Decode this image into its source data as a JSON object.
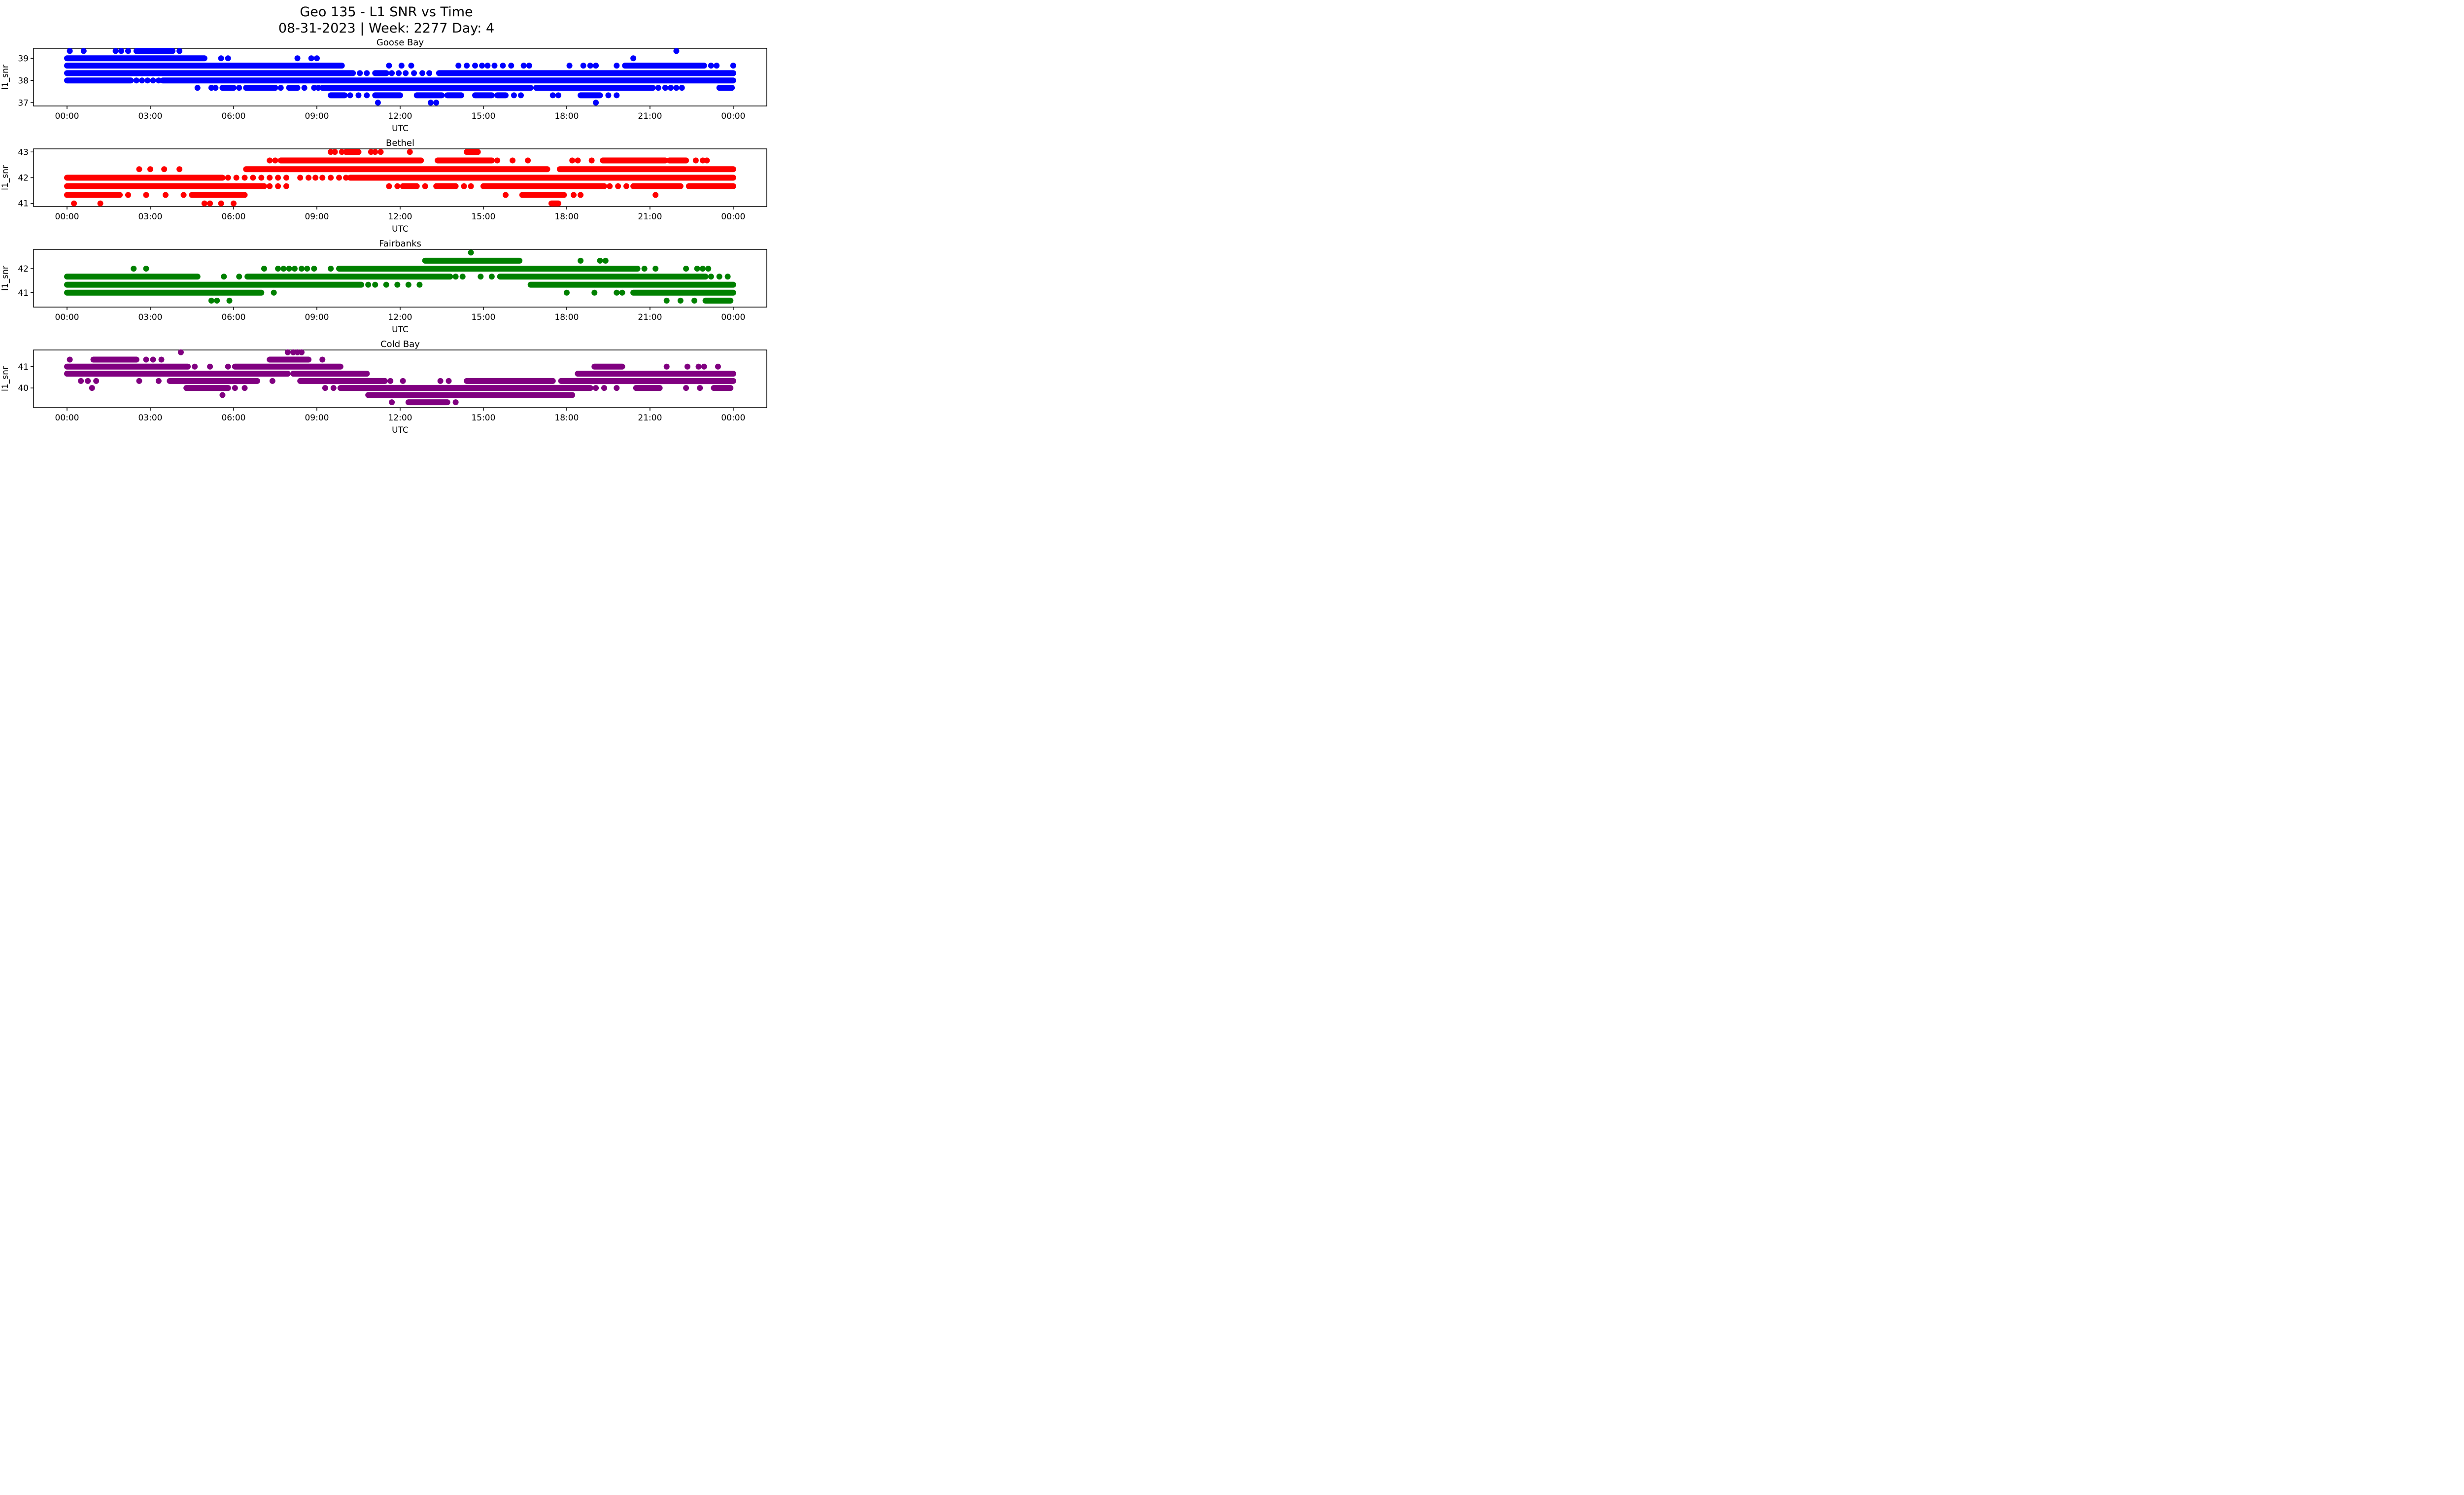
{
  "figure": {
    "title_line1": "Geo 135 - L1 SNR vs Time",
    "title_line2": "08-31-2023 | Week: 2277 Day: 4",
    "xlabel": "UTC",
    "ylabel": "l1_snr",
    "background": "#ffffff",
    "text_color": "#000000",
    "x_ticks": {
      "hours": [
        0,
        3,
        6,
        9,
        12,
        15,
        18,
        21,
        24
      ],
      "labels": [
        "00:00",
        "03:00",
        "06:00",
        "09:00",
        "12:00",
        "15:00",
        "18:00",
        "21:00",
        "00:00"
      ]
    }
  },
  "chart_data": [
    {
      "type": "scatter",
      "title": "Goose Bay",
      "color": "#0000ff",
      "xlabel": "UTC",
      "ylabel": "l1_snr",
      "x_hours_range": [
        0,
        24
      ],
      "ylim": [
        36.85,
        39.45
      ],
      "y_ticks": [
        37,
        38,
        39
      ],
      "y_tick_labels": [
        "37",
        "38",
        "39"
      ],
      "snr_levels": [
        37.0,
        37.33,
        37.67,
        38.0,
        38.33,
        38.67,
        39.0,
        39.33
      ],
      "runs": [
        [
          39.33,
          2.5,
          3.8
        ],
        [
          39.0,
          0.0,
          4.95
        ],
        [
          38.67,
          0.0,
          9.9
        ],
        [
          38.67,
          20.1,
          22.95
        ],
        [
          38.33,
          0.0,
          10.3
        ],
        [
          38.33,
          11.1,
          11.5
        ],
        [
          38.33,
          13.4,
          24.0
        ],
        [
          38.0,
          0.0,
          2.3
        ],
        [
          38.0,
          3.45,
          24.0
        ],
        [
          37.67,
          5.6,
          6.0
        ],
        [
          37.67,
          6.45,
          7.5
        ],
        [
          37.67,
          8.0,
          8.3
        ],
        [
          37.67,
          9.2,
          16.7
        ],
        [
          37.67,
          16.9,
          21.1
        ],
        [
          37.67,
          23.5,
          23.95
        ],
        [
          37.33,
          9.5,
          10.0
        ],
        [
          37.33,
          11.1,
          12.0
        ],
        [
          37.33,
          12.6,
          13.5
        ],
        [
          37.33,
          13.7,
          14.2
        ],
        [
          37.33,
          14.7,
          15.3
        ],
        [
          37.33,
          15.5,
          15.8
        ],
        [
          37.33,
          18.5,
          19.2
        ]
      ],
      "points": [
        [
          39.33,
          0.1
        ],
        [
          39.33,
          0.6
        ],
        [
          39.33,
          1.75
        ],
        [
          39.33,
          1.95
        ],
        [
          39.33,
          2.2
        ],
        [
          39.33,
          4.05
        ],
        [
          39.33,
          21.95
        ],
        [
          39.0,
          5.55
        ],
        [
          39.0,
          5.8
        ],
        [
          39.0,
          8.3
        ],
        [
          39.0,
          8.8
        ],
        [
          39.0,
          9.0
        ],
        [
          39.0,
          20.4
        ],
        [
          38.67,
          11.6
        ],
        [
          38.67,
          12.05
        ],
        [
          38.67,
          12.4
        ],
        [
          38.67,
          14.1
        ],
        [
          38.67,
          14.4
        ],
        [
          38.67,
          14.7
        ],
        [
          38.67,
          14.95
        ],
        [
          38.67,
          15.15
        ],
        [
          38.67,
          15.4
        ],
        [
          38.67,
          15.7
        ],
        [
          38.67,
          16.0
        ],
        [
          38.67,
          16.45
        ],
        [
          38.67,
          16.65
        ],
        [
          38.67,
          18.1
        ],
        [
          38.67,
          18.6
        ],
        [
          38.67,
          18.85
        ],
        [
          38.67,
          19.05
        ],
        [
          38.67,
          19.8
        ],
        [
          38.67,
          23.2
        ],
        [
          38.67,
          23.4
        ],
        [
          38.67,
          24.0
        ],
        [
          38.33,
          10.55
        ],
        [
          38.33,
          10.8
        ],
        [
          38.33,
          11.7
        ],
        [
          38.33,
          11.95
        ],
        [
          38.33,
          12.2
        ],
        [
          38.33,
          12.5
        ],
        [
          38.33,
          12.8
        ],
        [
          38.33,
          13.05
        ],
        [
          38.0,
          2.5
        ],
        [
          38.0,
          2.7
        ],
        [
          38.0,
          2.9
        ],
        [
          38.0,
          3.1
        ],
        [
          38.0,
          3.3
        ],
        [
          37.67,
          4.7
        ],
        [
          37.67,
          5.2
        ],
        [
          37.67,
          5.35
        ],
        [
          37.67,
          6.2
        ],
        [
          37.67,
          7.7
        ],
        [
          37.67,
          8.55
        ],
        [
          37.67,
          8.9
        ],
        [
          37.67,
          9.05
        ],
        [
          37.67,
          21.3
        ],
        [
          37.67,
          21.55
        ],
        [
          37.67,
          21.75
        ],
        [
          37.67,
          21.95
        ],
        [
          37.67,
          22.15
        ],
        [
          37.33,
          10.2
        ],
        [
          37.33,
          10.5
        ],
        [
          37.33,
          10.8
        ],
        [
          37.33,
          16.1
        ],
        [
          37.33,
          16.35
        ],
        [
          37.33,
          17.5
        ],
        [
          37.33,
          17.7
        ],
        [
          37.33,
          19.5
        ],
        [
          37.33,
          19.8
        ],
        [
          37.0,
          11.2
        ],
        [
          37.0,
          13.1
        ],
        [
          37.0,
          13.3
        ],
        [
          37.0,
          19.05
        ]
      ]
    },
    {
      "type": "scatter",
      "title": "Bethel",
      "color": "#ff0000",
      "xlabel": "UTC",
      "ylabel": "l1_snr",
      "x_hours_range": [
        0,
        24
      ],
      "ylim": [
        40.88,
        43.12
      ],
      "y_ticks": [
        41,
        42,
        43
      ],
      "y_tick_labels": [
        "41",
        "42",
        "43"
      ],
      "snr_levels": [
        41.0,
        41.33,
        41.67,
        42.0,
        42.33,
        42.67,
        43.0
      ],
      "runs": [
        [
          43.0,
          10.05,
          10.5
        ],
        [
          43.0,
          14.4,
          14.8
        ],
        [
          42.67,
          7.7,
          12.75
        ],
        [
          42.67,
          13.35,
          15.3
        ],
        [
          42.67,
          19.3,
          21.55
        ],
        [
          42.67,
          21.7,
          22.3
        ],
        [
          42.33,
          6.45,
          17.3
        ],
        [
          42.33,
          17.75,
          24.0
        ],
        [
          42.0,
          0.0,
          5.6
        ],
        [
          42.0,
          10.2,
          24.0
        ],
        [
          41.67,
          0.0,
          7.1
        ],
        [
          41.67,
          12.1,
          12.6
        ],
        [
          41.67,
          13.3,
          14.0
        ],
        [
          41.67,
          15.0,
          19.35
        ],
        [
          41.67,
          20.4,
          22.1
        ],
        [
          41.67,
          22.4,
          24.0
        ],
        [
          41.33,
          0.0,
          1.9
        ],
        [
          41.33,
          4.5,
          6.4
        ],
        [
          41.33,
          16.4,
          17.9
        ],
        [
          41.0,
          17.45,
          17.7
        ]
      ],
      "points": [
        [
          43.0,
          9.5
        ],
        [
          43.0,
          9.65
        ],
        [
          43.0,
          9.9
        ],
        [
          43.0,
          10.95
        ],
        [
          43.0,
          11.1
        ],
        [
          43.0,
          11.3
        ],
        [
          43.0,
          12.35
        ],
        [
          42.67,
          7.3
        ],
        [
          42.67,
          7.5
        ],
        [
          42.67,
          15.5
        ],
        [
          42.67,
          16.05
        ],
        [
          42.67,
          16.6
        ],
        [
          42.67,
          18.2
        ],
        [
          42.67,
          18.4
        ],
        [
          42.67,
          18.9
        ],
        [
          42.67,
          22.65
        ],
        [
          42.67,
          22.9
        ],
        [
          42.67,
          23.05
        ],
        [
          42.33,
          2.6
        ],
        [
          42.33,
          3.0
        ],
        [
          42.33,
          3.5
        ],
        [
          42.33,
          4.05
        ],
        [
          42.0,
          5.8
        ],
        [
          42.0,
          6.1
        ],
        [
          42.0,
          6.4
        ],
        [
          42.0,
          6.7
        ],
        [
          42.0,
          7.0
        ],
        [
          42.0,
          7.3
        ],
        [
          42.0,
          7.6
        ],
        [
          42.0,
          7.9
        ],
        [
          42.0,
          8.4
        ],
        [
          42.0,
          8.7
        ],
        [
          42.0,
          8.95
        ],
        [
          42.0,
          9.2
        ],
        [
          42.0,
          9.5
        ],
        [
          42.0,
          9.8
        ],
        [
          42.0,
          10.05
        ],
        [
          41.67,
          7.3
        ],
        [
          41.67,
          7.6
        ],
        [
          41.67,
          7.9
        ],
        [
          41.67,
          11.6
        ],
        [
          41.67,
          11.9
        ],
        [
          41.67,
          12.9
        ],
        [
          41.67,
          14.3
        ],
        [
          41.67,
          14.55
        ],
        [
          41.67,
          19.55
        ],
        [
          41.67,
          19.85
        ],
        [
          41.67,
          20.15
        ],
        [
          41.33,
          2.2
        ],
        [
          41.33,
          2.85
        ],
        [
          41.33,
          3.55
        ],
        [
          41.33,
          4.2
        ],
        [
          41.33,
          15.8
        ],
        [
          41.33,
          18.25
        ],
        [
          41.33,
          18.5
        ],
        [
          41.33,
          21.2
        ],
        [
          41.0,
          0.25
        ],
        [
          41.0,
          1.2
        ],
        [
          41.0,
          4.95
        ],
        [
          41.0,
          5.15
        ],
        [
          41.0,
          5.55
        ],
        [
          41.0,
          6.0
        ]
      ]
    },
    {
      "type": "scatter",
      "title": "Fairbanks",
      "color": "#008000",
      "xlabel": "UTC",
      "ylabel": "l1_snr",
      "x_hours_range": [
        0,
        24
      ],
      "ylim": [
        40.4,
        42.8
      ],
      "y_ticks": [
        41,
        42
      ],
      "y_tick_labels": [
        "41",
        "42"
      ],
      "snr_levels": [
        40.67,
        41.0,
        41.33,
        41.67,
        42.0,
        42.33,
        42.67
      ],
      "runs": [
        [
          42.33,
          12.9,
          16.3
        ],
        [
          42.0,
          9.8,
          20.55
        ],
        [
          41.67,
          0.0,
          4.7
        ],
        [
          41.67,
          6.5,
          13.8
        ],
        [
          41.67,
          15.6,
          23.0
        ],
        [
          41.33,
          0.0,
          10.6
        ],
        [
          41.33,
          16.7,
          24.0
        ],
        [
          41.0,
          0.0,
          7.0
        ],
        [
          41.0,
          20.4,
          24.0
        ],
        [
          40.67,
          23.0,
          23.9
        ]
      ],
      "points": [
        [
          42.67,
          14.55
        ],
        [
          42.33,
          18.5
        ],
        [
          42.33,
          19.2
        ],
        [
          42.33,
          19.4
        ],
        [
          42.0,
          2.4
        ],
        [
          42.0,
          2.85
        ],
        [
          42.0,
          7.1
        ],
        [
          42.0,
          7.6
        ],
        [
          42.0,
          7.8
        ],
        [
          42.0,
          8.0
        ],
        [
          42.0,
          8.2
        ],
        [
          42.0,
          8.45
        ],
        [
          42.0,
          8.65
        ],
        [
          42.0,
          8.9
        ],
        [
          42.0,
          9.5
        ],
        [
          42.0,
          20.8
        ],
        [
          42.0,
          21.2
        ],
        [
          42.0,
          22.3
        ],
        [
          42.0,
          22.7
        ],
        [
          42.0,
          22.9
        ],
        [
          42.0,
          23.1
        ],
        [
          41.67,
          5.65
        ],
        [
          41.67,
          6.2
        ],
        [
          41.67,
          14.0
        ],
        [
          41.67,
          14.25
        ],
        [
          41.67,
          14.9
        ],
        [
          41.67,
          15.3
        ],
        [
          41.67,
          23.2
        ],
        [
          41.67,
          23.5
        ],
        [
          41.67,
          23.8
        ],
        [
          41.33,
          10.85
        ],
        [
          41.33,
          11.1
        ],
        [
          41.33,
          11.5
        ],
        [
          41.33,
          11.9
        ],
        [
          41.33,
          12.3
        ],
        [
          41.33,
          12.7
        ],
        [
          41.0,
          7.45
        ],
        [
          41.0,
          18.0
        ],
        [
          41.0,
          19.0
        ],
        [
          41.0,
          19.8
        ],
        [
          41.0,
          20.0
        ],
        [
          40.67,
          5.2
        ],
        [
          40.67,
          5.4
        ],
        [
          40.67,
          5.85
        ],
        [
          40.67,
          21.6
        ],
        [
          40.67,
          22.1
        ],
        [
          40.67,
          22.6
        ]
      ]
    },
    {
      "type": "scatter",
      "title": "Cold Bay",
      "color": "#800080",
      "xlabel": "UTC",
      "ylabel": "l1_snr",
      "x_hours_range": [
        0,
        24
      ],
      "ylim": [
        39.08,
        41.78
      ],
      "y_ticks": [
        40,
        41
      ],
      "y_tick_labels": [
        "40",
        "41"
      ],
      "snr_levels": [
        39.33,
        39.67,
        40.0,
        40.33,
        40.67,
        41.0,
        41.33,
        41.67
      ],
      "runs": [
        [
          41.33,
          0.95,
          2.5
        ],
        [
          41.33,
          7.3,
          8.7
        ],
        [
          41.0,
          0.0,
          4.35
        ],
        [
          41.0,
          6.05,
          9.85
        ],
        [
          41.0,
          19.0,
          20.0
        ],
        [
          40.67,
          0.0,
          7.95
        ],
        [
          40.67,
          8.15,
          10.8
        ],
        [
          40.67,
          18.4,
          24.0
        ],
        [
          40.33,
          3.7,
          6.85
        ],
        [
          40.33,
          8.4,
          11.45
        ],
        [
          40.33,
          14.4,
          17.5
        ],
        [
          40.33,
          17.8,
          24.0
        ],
        [
          40.0,
          4.3,
          5.8
        ],
        [
          40.0,
          9.85,
          18.85
        ],
        [
          40.0,
          20.5,
          21.35
        ],
        [
          40.0,
          23.3,
          23.9
        ],
        [
          39.67,
          10.85,
          18.2
        ],
        [
          39.33,
          12.3,
          13.7
        ]
      ],
      "points": [
        [
          41.67,
          4.1
        ],
        [
          41.67,
          7.95
        ],
        [
          41.67,
          8.15
        ],
        [
          41.67,
          8.3
        ],
        [
          41.67,
          8.45
        ],
        [
          41.33,
          0.1
        ],
        [
          41.33,
          2.85
        ],
        [
          41.33,
          3.1
        ],
        [
          41.33,
          3.4
        ],
        [
          41.33,
          9.2
        ],
        [
          41.0,
          4.6
        ],
        [
          41.0,
          5.15
        ],
        [
          41.0,
          5.8
        ],
        [
          41.0,
          21.6
        ],
        [
          41.0,
          22.35
        ],
        [
          41.0,
          22.75
        ],
        [
          41.0,
          22.95
        ],
        [
          41.0,
          23.45
        ],
        [
          40.33,
          0.5
        ],
        [
          40.33,
          0.75
        ],
        [
          40.33,
          1.05
        ],
        [
          40.33,
          2.6
        ],
        [
          40.33,
          3.3
        ],
        [
          40.33,
          7.4
        ],
        [
          40.33,
          11.65
        ],
        [
          40.33,
          12.1
        ],
        [
          40.33,
          13.45
        ],
        [
          40.33,
          13.75
        ],
        [
          40.0,
          0.9
        ],
        [
          40.0,
          6.05
        ],
        [
          40.0,
          6.4
        ],
        [
          40.0,
          9.3
        ],
        [
          40.0,
          9.6
        ],
        [
          40.0,
          19.05
        ],
        [
          40.0,
          19.35
        ],
        [
          40.0,
          19.8
        ],
        [
          40.0,
          22.3
        ],
        [
          40.0,
          22.8
        ],
        [
          39.67,
          5.6
        ],
        [
          39.33,
          11.7
        ],
        [
          39.33,
          14.0
        ]
      ]
    }
  ]
}
